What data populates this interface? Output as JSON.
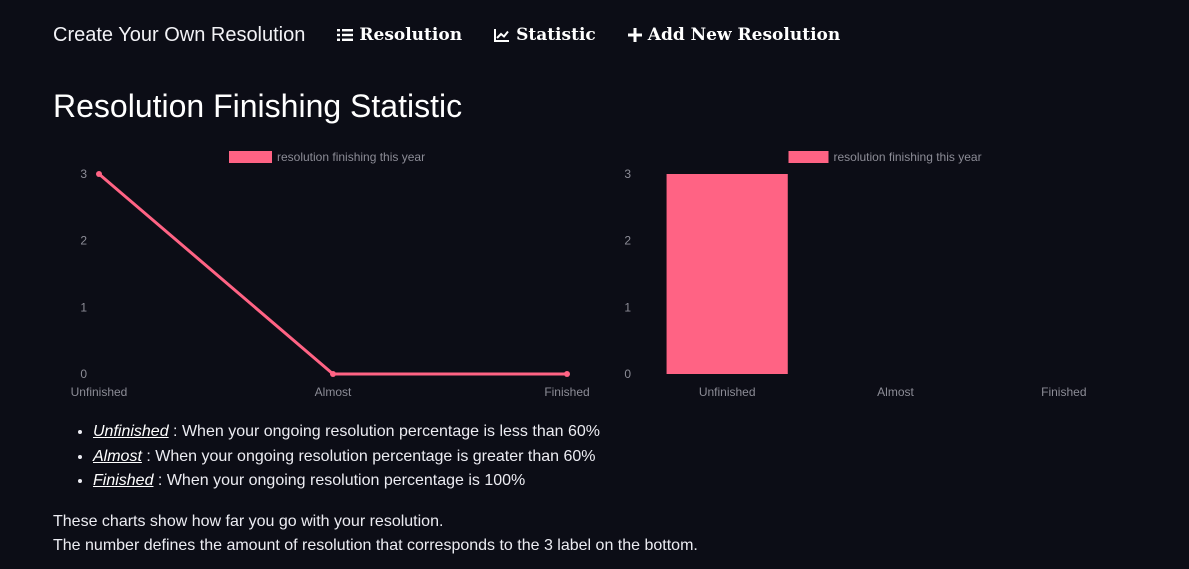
{
  "nav": {
    "brand": "Create Your Own Resolution",
    "links": [
      {
        "label": "Resolution",
        "icon": "list-icon"
      },
      {
        "label": "Statistic",
        "icon": "chart-line-icon"
      },
      {
        "label": "Add New Resolution",
        "icon": "plus-icon"
      }
    ]
  },
  "page_title": "Resolution Finishing Statistic",
  "chart_data": [
    {
      "type": "line",
      "categories": [
        "Unfinished",
        "Almost",
        "Finished"
      ],
      "series": [
        {
          "name": "resolution finishing this year",
          "values": [
            3,
            0,
            0
          ],
          "color": "#ff6384"
        }
      ],
      "ylim": [
        0,
        3
      ],
      "yticks": [
        "0",
        "1",
        "2",
        "3"
      ],
      "legend": "top-center",
      "grid": false
    },
    {
      "type": "bar",
      "categories": [
        "Unfinished",
        "Almost",
        "Finished"
      ],
      "series": [
        {
          "name": "resolution finishing this year",
          "values": [
            3,
            0,
            0
          ],
          "color": "#ff6384"
        }
      ],
      "ylim": [
        0,
        3
      ],
      "yticks": [
        "0",
        "1",
        "2",
        "3"
      ],
      "legend": "top-center",
      "grid": false
    }
  ],
  "definitions": [
    {
      "term": "Unfinished",
      "text": " : When your ongoing resolution percentage is less than 60%"
    },
    {
      "term": "Almost",
      "text": " : When your ongoing resolution percentage is greater than 60%"
    },
    {
      "term": "Finished",
      "text": " : When your ongoing resolution percentage is 100%"
    }
  ],
  "notes": [
    "These charts show how far you go with your resolution.",
    "The number defines the amount of resolution that corresponds to the 3 label on the bottom."
  ]
}
